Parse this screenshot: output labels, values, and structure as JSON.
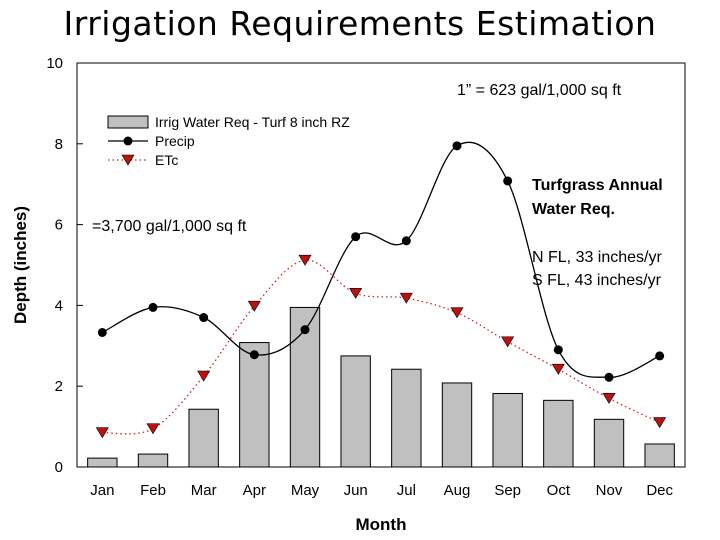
{
  "title": "Irrigation Requirements Estimation",
  "chart_data": {
    "type": "bar",
    "categories": [
      "Jan",
      "Feb",
      "Mar",
      "Apr",
      "May",
      "Jun",
      "Jul",
      "Aug",
      "Sep",
      "Oct",
      "Nov",
      "Dec"
    ],
    "series": [
      {
        "name": "Irrig Water Req - Turf 8 inch RZ",
        "type": "bar",
        "color": "#c0c0c0",
        "values": [
          0.22,
          0.32,
          1.43,
          3.08,
          3.95,
          2.75,
          2.42,
          2.08,
          1.82,
          1.65,
          1.18,
          0.57
        ]
      },
      {
        "name": "Precip",
        "type": "line",
        "color": "#000000",
        "values": [
          3.33,
          3.95,
          3.7,
          2.78,
          3.4,
          5.7,
          5.6,
          7.95,
          7.08,
          2.9,
          2.22,
          2.75
        ]
      },
      {
        "name": "ETc",
        "type": "line",
        "color": "#cc2222",
        "marker_color": "#bb1111",
        "values": [
          0.85,
          0.95,
          2.25,
          3.98,
          5.12,
          4.3,
          4.18,
          3.82,
          3.1,
          2.42,
          1.7,
          1.1
        ]
      }
    ],
    "xlabel": "Month",
    "ylabel": "Depth (inches)",
    "ylim": [
      0,
      10
    ],
    "yticks": [
      0,
      2,
      4,
      6,
      8,
      10
    ],
    "grid": false,
    "legend_position": "top-left"
  },
  "annotations": {
    "conversion": "1” = 623 gal/1,000 sq ft",
    "annual_volume": "=3,700 gal/1,000 sq ft",
    "summary_heading_line1": "Turfgrass Annual",
    "summary_heading_line2": "Water Req.",
    "north_fl": "N FL, 33 inches/yr",
    "south_fl": "S FL, 43 inches/yr"
  }
}
